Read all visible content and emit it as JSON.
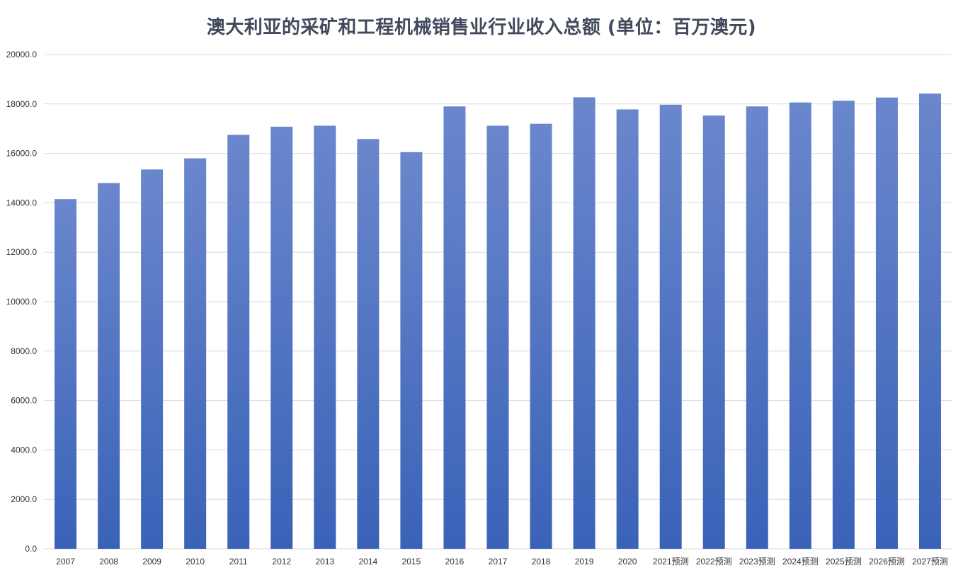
{
  "title": "澳大利亚的采矿和工程机械销售业行业收入总额 (单位：百万澳元)",
  "chart_data": {
    "type": "bar",
    "title": "澳大利亚的采矿和工程机械销售业行业收入总额 (单位：百万澳元)",
    "xlabel": "",
    "ylabel": "",
    "categories": [
      "2007",
      "2008",
      "2009",
      "2010",
      "2011",
      "2012",
      "2013",
      "2014",
      "2015",
      "2016",
      "2017",
      "2018",
      "2019",
      "2020",
      "2021预测",
      "2022预测",
      "2023预测",
      "2024预测",
      "2025预测",
      "2026预测",
      "2027预测"
    ],
    "values": [
      14150,
      14800,
      15350,
      15800,
      16750,
      17080,
      17120,
      16580,
      16050,
      17900,
      17120,
      17200,
      18270,
      17780,
      17970,
      17530,
      17900,
      18060,
      18130,
      18260,
      18420
    ],
    "ylim": [
      0,
      20000
    ],
    "yticks": [
      "0.0",
      "2000.0",
      "4000.0",
      "6000.0",
      "8000.0",
      "10000.0",
      "12000.0",
      "14000.0",
      "16000.0",
      "18000.0",
      "20000.0"
    ],
    "grid": true,
    "legend": "none",
    "bar_color_top": "#6a87cc",
    "bar_color_bottom": "#3a62b8",
    "gridline_color": "#d9d9d9"
  }
}
